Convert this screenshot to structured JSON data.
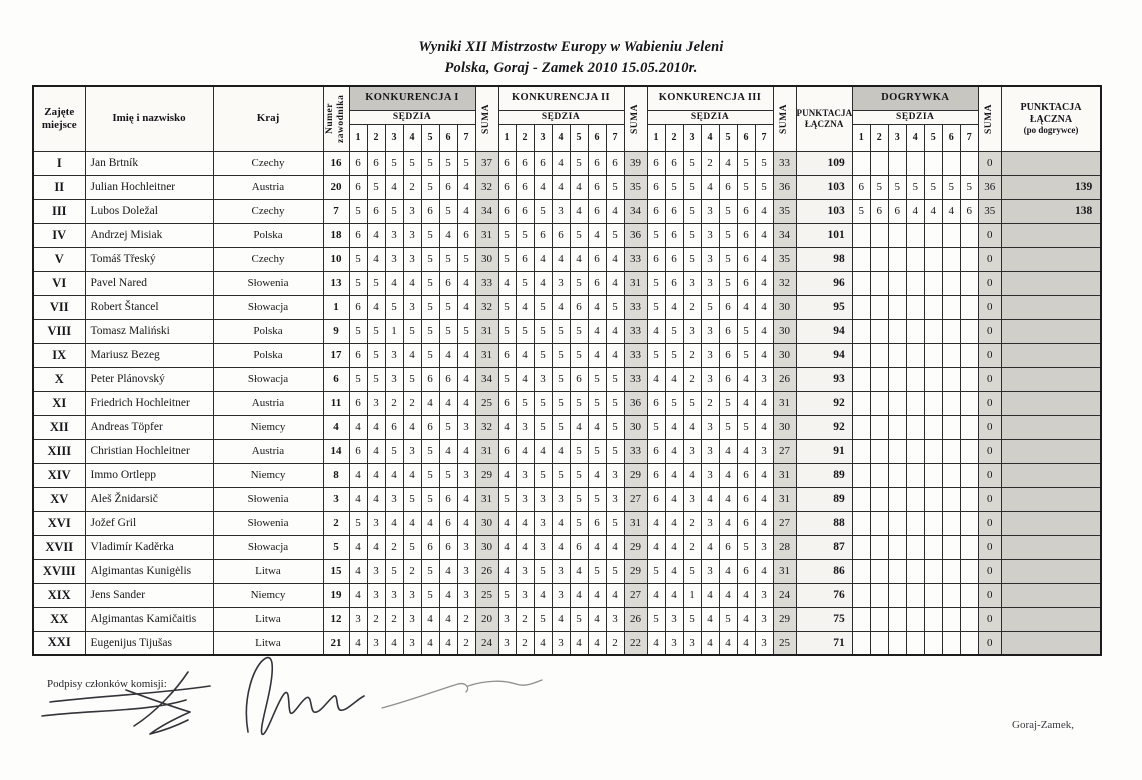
{
  "title": {
    "line1": "Wyniki XII Mistrzostw Europy w Wabieniu Jeleni",
    "line2": "Polska, Goraj - Zamek 2010 15.05.2010r."
  },
  "table": {
    "headers": {
      "place": "Zajęte miejsce",
      "name": "Imię i nazwisko",
      "country": "Kraj",
      "number": "Numer zawodnika",
      "competitions": [
        "KONKURENCJA I",
        "KONKURENCJA II",
        "KONKURENCJA III"
      ],
      "judge": "SĘDZIA",
      "judge_numbers": [
        "1",
        "2",
        "3",
        "4",
        "5",
        "6",
        "7"
      ],
      "suma": "SUMA",
      "total": "PUNKTACJA ŁĄCZNA",
      "playoff": "DOGRYWKA",
      "final_total": "PUNKTACJA ŁĄCZNA",
      "final_total_sub": "(po dogrywce)"
    },
    "rows": [
      {
        "place": "I",
        "name": "Jan Brtník",
        "country": "Czechy",
        "number": "16",
        "k1": [
          6,
          6,
          5,
          5,
          5,
          5,
          5
        ],
        "k1_sum": 37,
        "k2": [
          6,
          6,
          6,
          4,
          5,
          6,
          6
        ],
        "k2_sum": 39,
        "k3": [
          6,
          6,
          5,
          2,
          4,
          5,
          5
        ],
        "k3_sum": 33,
        "total": 109,
        "playoff_sum": 0,
        "final": ""
      },
      {
        "place": "II",
        "name": "Julian Hochleitner",
        "country": "Austria",
        "number": "20",
        "k1": [
          6,
          5,
          4,
          2,
          5,
          6,
          4
        ],
        "k1_sum": 32,
        "k2": [
          6,
          6,
          4,
          4,
          4,
          6,
          5
        ],
        "k2_sum": 35,
        "k3": [
          6,
          5,
          5,
          4,
          6,
          5,
          5
        ],
        "k3_sum": 36,
        "total": 103,
        "playoff": [
          6,
          5,
          5,
          5,
          5,
          5,
          5
        ],
        "playoff_sum": 36,
        "final": 139
      },
      {
        "place": "III",
        "name": "Lubos Doležal",
        "country": "Czechy",
        "number": "7",
        "k1": [
          5,
          6,
          5,
          3,
          6,
          5,
          4
        ],
        "k1_sum": 34,
        "k2": [
          6,
          6,
          5,
          3,
          4,
          6,
          4
        ],
        "k2_sum": 34,
        "k3": [
          6,
          6,
          5,
          3,
          5,
          6,
          4
        ],
        "k3_sum": 35,
        "total": 103,
        "playoff": [
          5,
          6,
          6,
          4,
          4,
          4,
          6
        ],
        "playoff_sum": 35,
        "final": 138
      },
      {
        "place": "IV",
        "name": "Andrzej Misiak",
        "country": "Polska",
        "number": "18",
        "k1": [
          6,
          4,
          3,
          3,
          5,
          4,
          6
        ],
        "k1_sum": 31,
        "k2": [
          5,
          5,
          6,
          6,
          5,
          4,
          5
        ],
        "k2_sum": 36,
        "k3": [
          5,
          6,
          5,
          3,
          5,
          6,
          4
        ],
        "k3_sum": 34,
        "total": 101,
        "playoff_sum": 0,
        "final": ""
      },
      {
        "place": "V",
        "name": "Tomáš  Třeský",
        "country": "Czechy",
        "number": "10",
        "k1": [
          5,
          4,
          3,
          3,
          5,
          5,
          5
        ],
        "k1_sum": 30,
        "k2": [
          5,
          6,
          4,
          4,
          4,
          6,
          4
        ],
        "k2_sum": 33,
        "k3": [
          6,
          6,
          5,
          3,
          5,
          6,
          4
        ],
        "k3_sum": 35,
        "total": 98,
        "playoff_sum": 0,
        "final": ""
      },
      {
        "place": "VI",
        "name": "Pavel Nared",
        "country": "Słowenia",
        "number": "13",
        "k1": [
          5,
          5,
          4,
          4,
          5,
          6,
          4
        ],
        "k1_sum": 33,
        "k2": [
          4,
          5,
          4,
          3,
          5,
          6,
          4
        ],
        "k2_sum": 31,
        "k3": [
          5,
          6,
          3,
          3,
          5,
          6,
          4
        ],
        "k3_sum": 32,
        "total": 96,
        "playoff_sum": 0,
        "final": ""
      },
      {
        "place": "VII",
        "name": "Robert Štancel",
        "country": "Słowacja",
        "number": "1",
        "k1": [
          6,
          4,
          5,
          3,
          5,
          5,
          4
        ],
        "k1_sum": 32,
        "k2": [
          5,
          4,
          5,
          4,
          6,
          4,
          5
        ],
        "k2_sum": 33,
        "k3": [
          5,
          4,
          2,
          5,
          6,
          4,
          4
        ],
        "k3_sum": 30,
        "total": 95,
        "playoff_sum": 0,
        "final": ""
      },
      {
        "place": "VIII",
        "name": "Tomasz Maliński",
        "country": "Polska",
        "number": "9",
        "k1": [
          5,
          5,
          1,
          5,
          5,
          5,
          5
        ],
        "k1_sum": 31,
        "k2": [
          5,
          5,
          5,
          5,
          5,
          4,
          4
        ],
        "k2_sum": 33,
        "k3": [
          4,
          5,
          3,
          3,
          6,
          5,
          4
        ],
        "k3_sum": 30,
        "total": 94,
        "playoff_sum": 0,
        "final": ""
      },
      {
        "place": "IX",
        "name": "Mariusz Bezeg",
        "country": "Polska",
        "number": "17",
        "k1": [
          6,
          5,
          3,
          4,
          5,
          4,
          4
        ],
        "k1_sum": 31,
        "k2": [
          6,
          4,
          5,
          5,
          5,
          4,
          4
        ],
        "k2_sum": 33,
        "k3": [
          5,
          5,
          2,
          3,
          6,
          5,
          4
        ],
        "k3_sum": 30,
        "total": 94,
        "playoff_sum": 0,
        "final": ""
      },
      {
        "place": "X",
        "name": "Peter Plánovský",
        "country": "Słowacja",
        "number": "6",
        "k1": [
          5,
          5,
          3,
          5,
          6,
          6,
          4
        ],
        "k1_sum": 34,
        "k2": [
          5,
          4,
          3,
          5,
          6,
          5,
          5
        ],
        "k2_sum": 33,
        "k3": [
          4,
          4,
          2,
          3,
          6,
          4,
          3
        ],
        "k3_sum": 26,
        "total": 93,
        "playoff_sum": 0,
        "final": ""
      },
      {
        "place": "XI",
        "name": "Friedrich Hochleitner",
        "country": "Austria",
        "number": "11",
        "k1": [
          6,
          3,
          2,
          2,
          4,
          4,
          4
        ],
        "k1_sum": 25,
        "k2": [
          6,
          5,
          5,
          5,
          5,
          5,
          5
        ],
        "k2_sum": 36,
        "k3": [
          6,
          5,
          5,
          2,
          5,
          4,
          4
        ],
        "k3_sum": 31,
        "total": 92,
        "playoff_sum": 0,
        "final": ""
      },
      {
        "place": "XII",
        "name": "Andreas Töpfer",
        "country": "Niemcy",
        "number": "4",
        "k1": [
          4,
          4,
          6,
          4,
          6,
          5,
          3
        ],
        "k1_sum": 32,
        "k2": [
          4,
          3,
          5,
          5,
          4,
          4,
          5
        ],
        "k2_sum": 30,
        "k3": [
          5,
          4,
          4,
          3,
          5,
          5,
          4
        ],
        "k3_sum": 30,
        "total": 92,
        "playoff_sum": 0,
        "final": ""
      },
      {
        "place": "XIII",
        "name": "Christian Hochleitner",
        "country": "Austria",
        "number": "14",
        "k1": [
          6,
          4,
          5,
          3,
          5,
          4,
          4
        ],
        "k1_sum": 31,
        "k2": [
          6,
          4,
          4,
          4,
          5,
          5,
          5
        ],
        "k2_sum": 33,
        "k3": [
          6,
          4,
          3,
          3,
          4,
          4,
          3
        ],
        "k3_sum": 27,
        "total": 91,
        "playoff_sum": 0,
        "final": ""
      },
      {
        "place": "XIV",
        "name": "Immo Ortlepp",
        "country": "Niemcy",
        "number": "8",
        "k1": [
          4,
          4,
          4,
          4,
          5,
          5,
          3
        ],
        "k1_sum": 29,
        "k2": [
          4,
          3,
          5,
          5,
          5,
          4,
          3
        ],
        "k2_sum": 29,
        "k3": [
          6,
          4,
          4,
          3,
          4,
          6,
          4
        ],
        "k3_sum": 31,
        "total": 89,
        "playoff_sum": 0,
        "final": ""
      },
      {
        "place": "XV",
        "name": "Aleš Žnidarsič",
        "country": "Słowenia",
        "number": "3",
        "k1": [
          4,
          4,
          3,
          5,
          5,
          6,
          4
        ],
        "k1_sum": 31,
        "k2": [
          5,
          3,
          3,
          3,
          5,
          5,
          3
        ],
        "k2_sum": 27,
        "k3": [
          6,
          4,
          3,
          4,
          4,
          6,
          4
        ],
        "k3_sum": 31,
        "total": 89,
        "playoff_sum": 0,
        "final": ""
      },
      {
        "place": "XVI",
        "name": "Jožef Gril",
        "country": "Słowenia",
        "number": "2",
        "k1": [
          5,
          3,
          4,
          4,
          4,
          6,
          4
        ],
        "k1_sum": 30,
        "k2": [
          4,
          4,
          3,
          4,
          5,
          6,
          5
        ],
        "k2_sum": 31,
        "k3": [
          4,
          4,
          2,
          3,
          4,
          6,
          4
        ],
        "k3_sum": 27,
        "total": 88,
        "playoff_sum": 0,
        "final": ""
      },
      {
        "place": "XVII",
        "name": "Vladimír  Kaděrka",
        "country": "Słowacja",
        "number": "5",
        "k1": [
          4,
          4,
          2,
          5,
          6,
          6,
          3
        ],
        "k1_sum": 30,
        "k2": [
          4,
          4,
          3,
          4,
          6,
          4,
          4
        ],
        "k2_sum": 29,
        "k3": [
          4,
          4,
          2,
          4,
          6,
          5,
          3
        ],
        "k3_sum": 28,
        "total": 87,
        "playoff_sum": 0,
        "final": ""
      },
      {
        "place": "XVIII",
        "name": "Algimantas  Kunigėlis",
        "country": "Litwa",
        "number": "15",
        "k1": [
          4,
          3,
          5,
          2,
          5,
          4,
          3
        ],
        "k1_sum": 26,
        "k2": [
          4,
          3,
          5,
          3,
          4,
          5,
          5
        ],
        "k2_sum": 29,
        "k3": [
          5,
          4,
          5,
          3,
          4,
          6,
          4
        ],
        "k3_sum": 31,
        "total": 86,
        "playoff_sum": 0,
        "final": ""
      },
      {
        "place": "XIX",
        "name": "Jens  Sander",
        "country": "Niemcy",
        "number": "19",
        "k1": [
          4,
          3,
          3,
          3,
          5,
          4,
          3
        ],
        "k1_sum": 25,
        "k2": [
          5,
          3,
          4,
          3,
          4,
          4,
          4
        ],
        "k2_sum": 27,
        "k3": [
          4,
          4,
          1,
          4,
          4,
          4,
          3
        ],
        "k3_sum": 24,
        "total": 76,
        "playoff_sum": 0,
        "final": ""
      },
      {
        "place": "XX",
        "name": "Algimantas Kamičaitis",
        "country": "Litwa",
        "number": "12",
        "k1": [
          3,
          2,
          2,
          3,
          4,
          4,
          2
        ],
        "k1_sum": 20,
        "k2": [
          3,
          2,
          5,
          4,
          5,
          4,
          3
        ],
        "k2_sum": 26,
        "k3": [
          5,
          3,
          5,
          4,
          5,
          4,
          3
        ],
        "k3_sum": 29,
        "total": 75,
        "playoff_sum": 0,
        "final": ""
      },
      {
        "place": "XXI",
        "name": "Eugenijus  Tijušas",
        "country": "Litwa",
        "number": "21",
        "k1": [
          4,
          3,
          4,
          3,
          4,
          4,
          2
        ],
        "k1_sum": 24,
        "k2": [
          3,
          2,
          4,
          3,
          4,
          4,
          2
        ],
        "k2_sum": 22,
        "k3": [
          4,
          3,
          3,
          4,
          4,
          4,
          3
        ],
        "k3_sum": 25,
        "total": 71,
        "playoff_sum": 0,
        "final": ""
      }
    ]
  },
  "footer": {
    "signatures_label": "Podpisy członków komisji:",
    "location_note": "Goraj-Zamek,"
  }
}
